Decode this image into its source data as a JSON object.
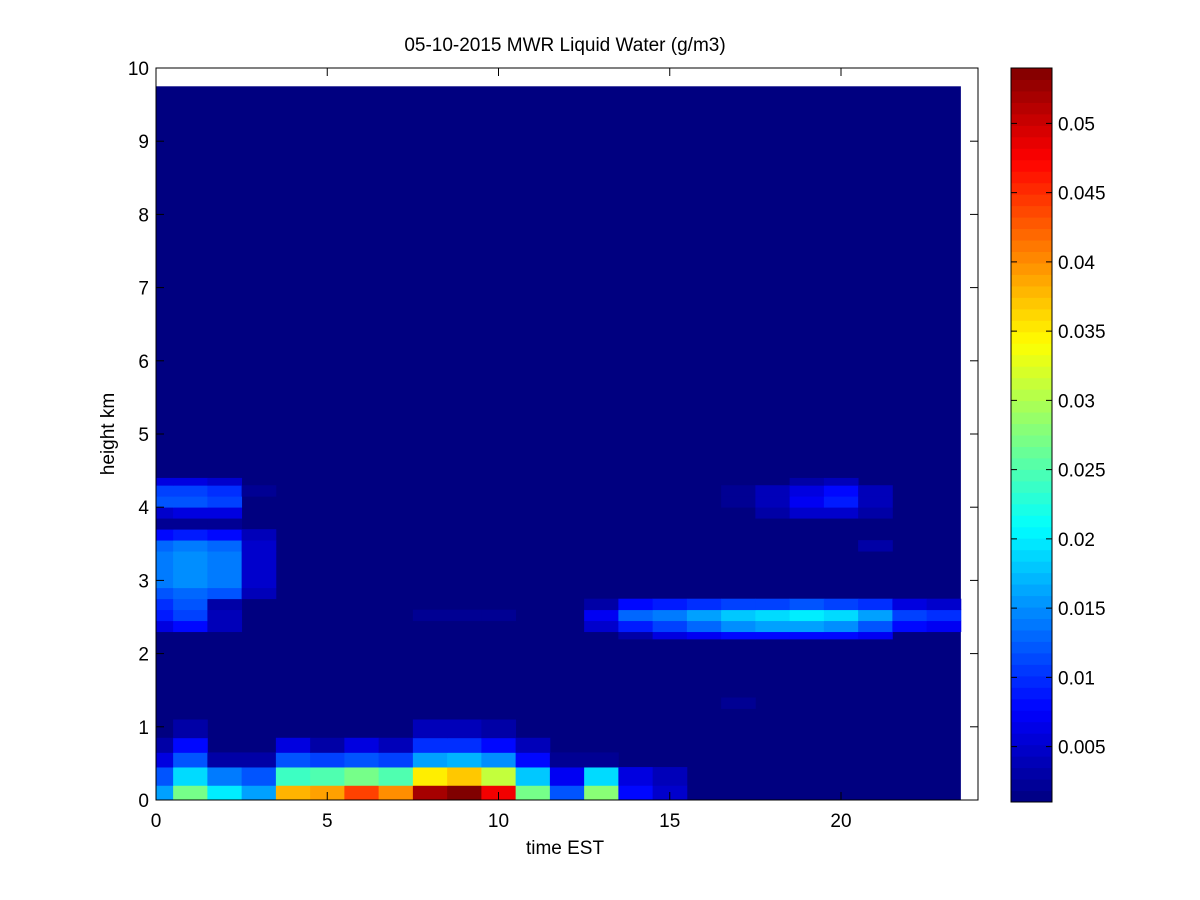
{
  "chart_data": {
    "type": "heatmap",
    "title": "05-10-2015 MWR Liquid Water (g/m3)",
    "xlabel": "time EST",
    "ylabel": "height km",
    "xlim": [
      0,
      24
    ],
    "ylim": [
      0,
      10
    ],
    "x_ticks": [
      "0",
      "5",
      "10",
      "15",
      "20"
    ],
    "y_ticks": [
      "0",
      "1",
      "2",
      "3",
      "4",
      "5",
      "6",
      "7",
      "8",
      "9",
      "10"
    ],
    "colorbar": {
      "colormap": "jet",
      "range": [
        0.001,
        0.054
      ],
      "ticks": [
        "0.005",
        "0.01",
        "0.015",
        "0.02",
        "0.025",
        "0.03",
        "0.035",
        "0.04",
        "0.045",
        "0.05"
      ]
    },
    "grid": false,
    "background_value": 0.001,
    "time_bins": [
      0,
      1,
      2,
      3,
      4,
      5,
      6,
      7,
      8,
      9,
      10,
      11,
      12,
      13,
      14,
      15,
      16,
      17,
      18,
      19,
      20,
      21,
      22,
      23
    ],
    "height_top_km": 9.75,
    "cells": [
      {
        "t": 0,
        "h": [
          0.0,
          0.2
        ],
        "v": 0.016
      },
      {
        "t": 1,
        "h": [
          0.0,
          0.2
        ],
        "v": 0.027
      },
      {
        "t": 2,
        "h": [
          0.0,
          0.2
        ],
        "v": 0.02
      },
      {
        "t": 3,
        "h": [
          0.0,
          0.2
        ],
        "v": 0.016
      },
      {
        "t": 4,
        "h": [
          0.0,
          0.2
        ],
        "v": 0.038
      },
      {
        "t": 5,
        "h": [
          0.0,
          0.2
        ],
        "v": 0.039
      },
      {
        "t": 6,
        "h": [
          0.0,
          0.2
        ],
        "v": 0.044
      },
      {
        "t": 7,
        "h": [
          0.0,
          0.2
        ],
        "v": 0.04
      },
      {
        "t": 8,
        "h": [
          0.0,
          0.2
        ],
        "v": 0.052
      },
      {
        "t": 9,
        "h": [
          0.0,
          0.2
        ],
        "v": 0.054
      },
      {
        "t": 10,
        "h": [
          0.0,
          0.2
        ],
        "v": 0.048
      },
      {
        "t": 11,
        "h": [
          0.0,
          0.2
        ],
        "v": 0.027
      },
      {
        "t": 12,
        "h": [
          0.0,
          0.2
        ],
        "v": 0.012
      },
      {
        "t": 13,
        "h": [
          0.0,
          0.2
        ],
        "v": 0.028
      },
      {
        "t": 14,
        "h": [
          0.0,
          0.2
        ],
        "v": 0.008
      },
      {
        "t": 15,
        "h": [
          0.0,
          0.2
        ],
        "v": 0.005
      },
      {
        "t": 0,
        "h": [
          0.2,
          0.45
        ],
        "v": 0.012
      },
      {
        "t": 1,
        "h": [
          0.2,
          0.45
        ],
        "v": 0.019
      },
      {
        "t": 2,
        "h": [
          0.2,
          0.45
        ],
        "v": 0.014
      },
      {
        "t": 3,
        "h": [
          0.2,
          0.45
        ],
        "v": 0.012
      },
      {
        "t": 4,
        "h": [
          0.2,
          0.45
        ],
        "v": 0.024
      },
      {
        "t": 5,
        "h": [
          0.2,
          0.45
        ],
        "v": 0.025
      },
      {
        "t": 6,
        "h": [
          0.2,
          0.45
        ],
        "v": 0.027
      },
      {
        "t": 7,
        "h": [
          0.2,
          0.45
        ],
        "v": 0.025
      },
      {
        "t": 8,
        "h": [
          0.2,
          0.45
        ],
        "v": 0.035
      },
      {
        "t": 9,
        "h": [
          0.2,
          0.45
        ],
        "v": 0.037
      },
      {
        "t": 10,
        "h": [
          0.2,
          0.45
        ],
        "v": 0.031
      },
      {
        "t": 11,
        "h": [
          0.2,
          0.45
        ],
        "v": 0.018
      },
      {
        "t": 12,
        "h": [
          0.2,
          0.45
        ],
        "v": 0.007
      },
      {
        "t": 13,
        "h": [
          0.2,
          0.45
        ],
        "v": 0.019
      },
      {
        "t": 14,
        "h": [
          0.2,
          0.45
        ],
        "v": 0.006
      },
      {
        "t": 15,
        "h": [
          0.2,
          0.45
        ],
        "v": 0.004
      },
      {
        "t": 0,
        "h": [
          0.45,
          0.65
        ],
        "v": 0.006
      },
      {
        "t": 1,
        "h": [
          0.45,
          0.65
        ],
        "v": 0.012
      },
      {
        "t": 2,
        "h": [
          0.45,
          0.65
        ],
        "v": 0.003
      },
      {
        "t": 3,
        "h": [
          0.45,
          0.65
        ],
        "v": 0.003
      },
      {
        "t": 4,
        "h": [
          0.45,
          0.65
        ],
        "v": 0.012
      },
      {
        "t": 5,
        "h": [
          0.45,
          0.65
        ],
        "v": 0.011
      },
      {
        "t": 6,
        "h": [
          0.45,
          0.65
        ],
        "v": 0.012
      },
      {
        "t": 7,
        "h": [
          0.45,
          0.65
        ],
        "v": 0.011
      },
      {
        "t": 8,
        "h": [
          0.45,
          0.65
        ],
        "v": 0.016
      },
      {
        "t": 9,
        "h": [
          0.45,
          0.65
        ],
        "v": 0.017
      },
      {
        "t": 10,
        "h": [
          0.45,
          0.65
        ],
        "v": 0.015
      },
      {
        "t": 11,
        "h": [
          0.45,
          0.65
        ],
        "v": 0.008
      },
      {
        "t": 12,
        "h": [
          0.45,
          0.65
        ],
        "v": 0.002
      },
      {
        "t": 13,
        "h": [
          0.45,
          0.65
        ],
        "v": 0.002
      },
      {
        "t": 0,
        "h": [
          0.65,
          0.85
        ],
        "v": 0.003
      },
      {
        "t": 1,
        "h": [
          0.65,
          0.85
        ],
        "v": 0.008
      },
      {
        "t": 4,
        "h": [
          0.65,
          0.85
        ],
        "v": 0.006
      },
      {
        "t": 5,
        "h": [
          0.65,
          0.85
        ],
        "v": 0.003
      },
      {
        "t": 6,
        "h": [
          0.65,
          0.85
        ],
        "v": 0.006
      },
      {
        "t": 7,
        "h": [
          0.65,
          0.85
        ],
        "v": 0.004
      },
      {
        "t": 8,
        "h": [
          0.65,
          0.85
        ],
        "v": 0.01
      },
      {
        "t": 9,
        "h": [
          0.65,
          0.85
        ],
        "v": 0.01
      },
      {
        "t": 10,
        "h": [
          0.65,
          0.85
        ],
        "v": 0.008
      },
      {
        "t": 11,
        "h": [
          0.65,
          0.85
        ],
        "v": 0.004
      },
      {
        "t": 1,
        "h": [
          0.85,
          1.1
        ],
        "v": 0.003
      },
      {
        "t": 8,
        "h": [
          0.85,
          1.1
        ],
        "v": 0.004
      },
      {
        "t": 9,
        "h": [
          0.85,
          1.1
        ],
        "v": 0.004
      },
      {
        "t": 10,
        "h": [
          0.85,
          1.1
        ],
        "v": 0.003
      },
      {
        "t": 17,
        "h": [
          1.25,
          1.4
        ],
        "v": 0.002
      },
      {
        "t": 14,
        "h": [
          2.2,
          2.3
        ],
        "v": 0.003
      },
      {
        "t": 15,
        "h": [
          2.2,
          2.3
        ],
        "v": 0.006
      },
      {
        "t": 16,
        "h": [
          2.2,
          2.3
        ],
        "v": 0.007
      },
      {
        "t": 17,
        "h": [
          2.2,
          2.3
        ],
        "v": 0.008
      },
      {
        "t": 18,
        "h": [
          2.2,
          2.3
        ],
        "v": 0.008
      },
      {
        "t": 19,
        "h": [
          2.2,
          2.3
        ],
        "v": 0.008
      },
      {
        "t": 20,
        "h": [
          2.2,
          2.3
        ],
        "v": 0.008
      },
      {
        "t": 21,
        "h": [
          2.2,
          2.3
        ],
        "v": 0.007
      },
      {
        "t": 0,
        "h": [
          2.3,
          2.45
        ],
        "v": 0.006
      },
      {
        "t": 1,
        "h": [
          2.3,
          2.45
        ],
        "v": 0.008
      },
      {
        "t": 2,
        "h": [
          2.3,
          2.45
        ],
        "v": 0.004
      },
      {
        "t": 13,
        "h": [
          2.3,
          2.45
        ],
        "v": 0.005
      },
      {
        "t": 14,
        "h": [
          2.3,
          2.45
        ],
        "v": 0.009
      },
      {
        "t": 15,
        "h": [
          2.3,
          2.45
        ],
        "v": 0.011
      },
      {
        "t": 16,
        "h": [
          2.3,
          2.45
        ],
        "v": 0.013
      },
      {
        "t": 17,
        "h": [
          2.3,
          2.45
        ],
        "v": 0.015
      },
      {
        "t": 18,
        "h": [
          2.3,
          2.45
        ],
        "v": 0.016
      },
      {
        "t": 19,
        "h": [
          2.3,
          2.45
        ],
        "v": 0.016
      },
      {
        "t": 20,
        "h": [
          2.3,
          2.45
        ],
        "v": 0.015
      },
      {
        "t": 21,
        "h": [
          2.3,
          2.45
        ],
        "v": 0.012
      },
      {
        "t": 22,
        "h": [
          2.3,
          2.45
        ],
        "v": 0.008
      },
      {
        "t": 23,
        "h": [
          2.3,
          2.45
        ],
        "v": 0.007
      },
      {
        "t": 0,
        "h": [
          2.45,
          2.6
        ],
        "v": 0.009
      },
      {
        "t": 1,
        "h": [
          2.45,
          2.6
        ],
        "v": 0.011
      },
      {
        "t": 2,
        "h": [
          2.45,
          2.6
        ],
        "v": 0.004
      },
      {
        "t": 8,
        "h": [
          2.45,
          2.6
        ],
        "v": 0.002
      },
      {
        "t": 9,
        "h": [
          2.45,
          2.6
        ],
        "v": 0.002
      },
      {
        "t": 10,
        "h": [
          2.45,
          2.6
        ],
        "v": 0.002
      },
      {
        "t": 13,
        "h": [
          2.45,
          2.6
        ],
        "v": 0.007
      },
      {
        "t": 14,
        "h": [
          2.45,
          2.6
        ],
        "v": 0.013
      },
      {
        "t": 15,
        "h": [
          2.45,
          2.6
        ],
        "v": 0.014
      },
      {
        "t": 16,
        "h": [
          2.45,
          2.6
        ],
        "v": 0.016
      },
      {
        "t": 17,
        "h": [
          2.45,
          2.6
        ],
        "v": 0.018
      },
      {
        "t": 18,
        "h": [
          2.45,
          2.6
        ],
        "v": 0.019
      },
      {
        "t": 19,
        "h": [
          2.45,
          2.6
        ],
        "v": 0.02
      },
      {
        "t": 20,
        "h": [
          2.45,
          2.6
        ],
        "v": 0.019
      },
      {
        "t": 21,
        "h": [
          2.45,
          2.6
        ],
        "v": 0.016
      },
      {
        "t": 22,
        "h": [
          2.45,
          2.6
        ],
        "v": 0.011
      },
      {
        "t": 23,
        "h": [
          2.45,
          2.6
        ],
        "v": 0.01
      },
      {
        "t": 0,
        "h": [
          2.6,
          2.75
        ],
        "v": 0.01
      },
      {
        "t": 1,
        "h": [
          2.6,
          2.75
        ],
        "v": 0.012
      },
      {
        "t": 2,
        "h": [
          2.6,
          2.75
        ],
        "v": 0.003
      },
      {
        "t": 13,
        "h": [
          2.6,
          2.75
        ],
        "v": 0.003
      },
      {
        "t": 14,
        "h": [
          2.6,
          2.75
        ],
        "v": 0.008
      },
      {
        "t": 15,
        "h": [
          2.6,
          2.75
        ],
        "v": 0.009
      },
      {
        "t": 16,
        "h": [
          2.6,
          2.75
        ],
        "v": 0.01
      },
      {
        "t": 17,
        "h": [
          2.6,
          2.75
        ],
        "v": 0.011
      },
      {
        "t": 18,
        "h": [
          2.6,
          2.75
        ],
        "v": 0.011
      },
      {
        "t": 19,
        "h": [
          2.6,
          2.75
        ],
        "v": 0.012
      },
      {
        "t": 20,
        "h": [
          2.6,
          2.75
        ],
        "v": 0.011
      },
      {
        "t": 21,
        "h": [
          2.6,
          2.75
        ],
        "v": 0.01
      },
      {
        "t": 22,
        "h": [
          2.6,
          2.75
        ],
        "v": 0.006
      },
      {
        "t": 23,
        "h": [
          2.6,
          2.75
        ],
        "v": 0.005
      },
      {
        "t": 0,
        "h": [
          2.75,
          2.9
        ],
        "v": 0.012
      },
      {
        "t": 1,
        "h": [
          2.75,
          2.9
        ],
        "v": 0.013
      },
      {
        "t": 2,
        "h": [
          2.75,
          2.9
        ],
        "v": 0.012
      },
      {
        "t": 3,
        "h": [
          2.75,
          2.9
        ],
        "v": 0.004
      },
      {
        "t": 0,
        "h": [
          2.9,
          3.4
        ],
        "v": 0.014
      },
      {
        "t": 1,
        "h": [
          2.9,
          3.4
        ],
        "v": 0.015
      },
      {
        "t": 2,
        "h": [
          2.9,
          3.4
        ],
        "v": 0.014
      },
      {
        "t": 3,
        "h": [
          2.9,
          3.4
        ],
        "v": 0.005
      },
      {
        "t": 0,
        "h": [
          3.4,
          3.55
        ],
        "v": 0.013
      },
      {
        "t": 1,
        "h": [
          3.4,
          3.55
        ],
        "v": 0.014
      },
      {
        "t": 2,
        "h": [
          3.4,
          3.55
        ],
        "v": 0.013
      },
      {
        "t": 3,
        "h": [
          3.4,
          3.55
        ],
        "v": 0.005
      },
      {
        "t": 21,
        "h": [
          3.4,
          3.55
        ],
        "v": 0.003
      },
      {
        "t": 0,
        "h": [
          3.55,
          3.7
        ],
        "v": 0.008
      },
      {
        "t": 1,
        "h": [
          3.55,
          3.7
        ],
        "v": 0.009
      },
      {
        "t": 2,
        "h": [
          3.55,
          3.7
        ],
        "v": 0.008
      },
      {
        "t": 3,
        "h": [
          3.55,
          3.7
        ],
        "v": 0.004
      },
      {
        "t": 0,
        "h": [
          3.7,
          3.85
        ],
        "v": 0.002
      },
      {
        "t": 1,
        "h": [
          3.7,
          3.85
        ],
        "v": 0.002
      },
      {
        "t": 2,
        "h": [
          3.7,
          3.85
        ],
        "v": 0.002
      },
      {
        "t": 0,
        "h": [
          3.85,
          4.0
        ],
        "v": 0.005
      },
      {
        "t": 1,
        "h": [
          3.85,
          4.0
        ],
        "v": 0.006
      },
      {
        "t": 2,
        "h": [
          3.85,
          4.0
        ],
        "v": 0.006
      },
      {
        "t": 18,
        "h": [
          3.85,
          4.0
        ],
        "v": 0.003
      },
      {
        "t": 19,
        "h": [
          3.85,
          4.0
        ],
        "v": 0.005
      },
      {
        "t": 20,
        "h": [
          3.85,
          4.0
        ],
        "v": 0.005
      },
      {
        "t": 21,
        "h": [
          3.85,
          4.0
        ],
        "v": 0.003
      },
      {
        "t": 0,
        "h": [
          4.0,
          4.15
        ],
        "v": 0.012
      },
      {
        "t": 1,
        "h": [
          4.0,
          4.15
        ],
        "v": 0.012
      },
      {
        "t": 2,
        "h": [
          4.0,
          4.15
        ],
        "v": 0.011
      },
      {
        "t": 17,
        "h": [
          4.0,
          4.15
        ],
        "v": 0.002
      },
      {
        "t": 18,
        "h": [
          4.0,
          4.15
        ],
        "v": 0.004
      },
      {
        "t": 19,
        "h": [
          4.0,
          4.15
        ],
        "v": 0.007
      },
      {
        "t": 20,
        "h": [
          4.0,
          4.15
        ],
        "v": 0.009
      },
      {
        "t": 21,
        "h": [
          4.0,
          4.15
        ],
        "v": 0.004
      },
      {
        "t": 0,
        "h": [
          4.15,
          4.3
        ],
        "v": 0.011
      },
      {
        "t": 1,
        "h": [
          4.15,
          4.3
        ],
        "v": 0.011
      },
      {
        "t": 2,
        "h": [
          4.15,
          4.3
        ],
        "v": 0.01
      },
      {
        "t": 3,
        "h": [
          4.15,
          4.3
        ],
        "v": 0.002
      },
      {
        "t": 17,
        "h": [
          4.15,
          4.3
        ],
        "v": 0.002
      },
      {
        "t": 18,
        "h": [
          4.15,
          4.3
        ],
        "v": 0.004
      },
      {
        "t": 19,
        "h": [
          4.15,
          4.3
        ],
        "v": 0.006
      },
      {
        "t": 20,
        "h": [
          4.15,
          4.3
        ],
        "v": 0.008
      },
      {
        "t": 21,
        "h": [
          4.15,
          4.3
        ],
        "v": 0.004
      },
      {
        "t": 0,
        "h": [
          4.3,
          4.4
        ],
        "v": 0.006
      },
      {
        "t": 1,
        "h": [
          4.3,
          4.4
        ],
        "v": 0.006
      },
      {
        "t": 2,
        "h": [
          4.3,
          4.4
        ],
        "v": 0.005
      },
      {
        "t": 19,
        "h": [
          4.3,
          4.4
        ],
        "v": 0.003
      },
      {
        "t": 20,
        "h": [
          4.3,
          4.4
        ],
        "v": 0.004
      }
    ]
  }
}
